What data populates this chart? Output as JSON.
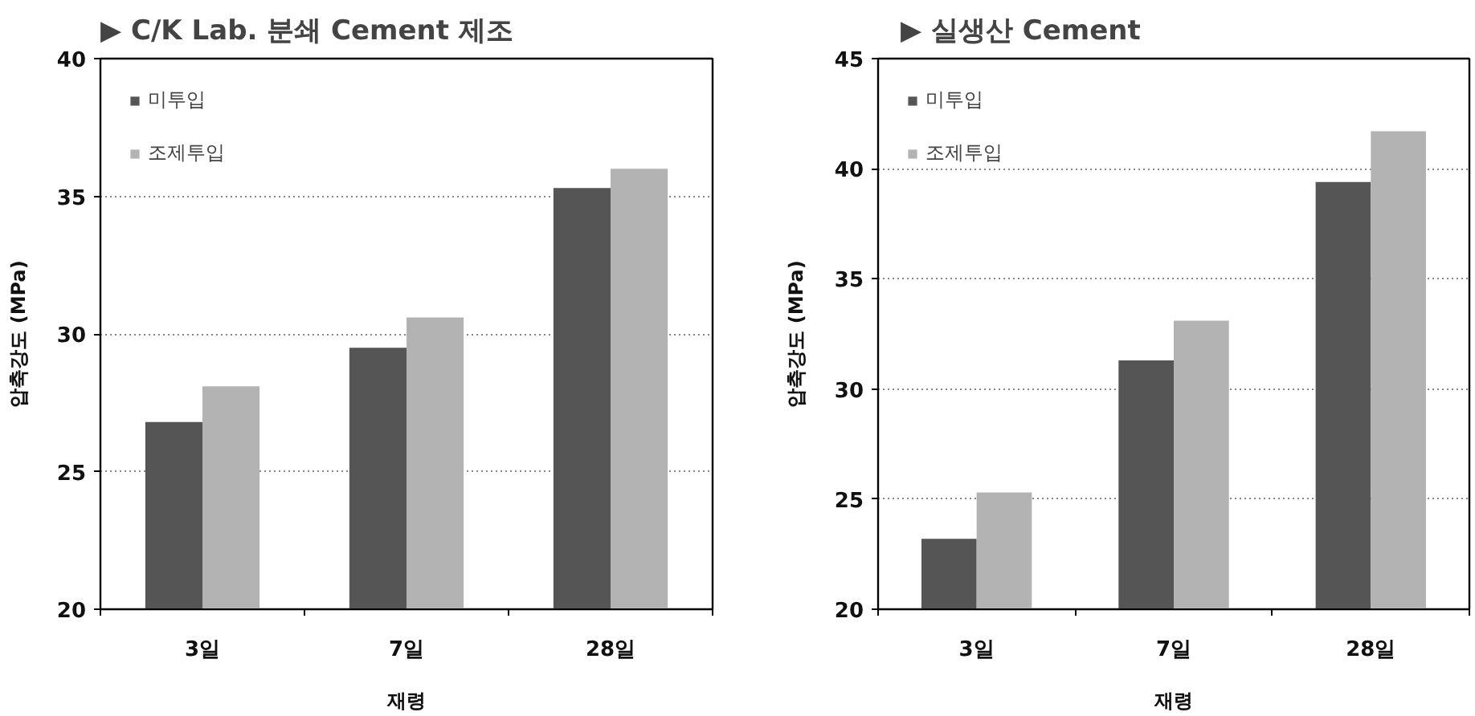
{
  "chart_data": [
    {
      "type": "bar",
      "title": "▶ C/K Lab. 분쇄 Cement 제조",
      "xlabel": "재령",
      "ylabel": "압축강도 (MPa)",
      "categories": [
        "3일",
        "7일",
        "28일"
      ],
      "series": [
        {
          "name": "미투입",
          "color": "#555555",
          "values": [
            26.8,
            29.5,
            35.3
          ]
        },
        {
          "name": "조제투입",
          "color": "#b3b3b3",
          "values": [
            28.1,
            30.6,
            36.0
          ]
        }
      ],
      "ylim": [
        20,
        40
      ],
      "yticks": [
        20,
        25,
        30,
        35,
        40
      ],
      "grid": "y",
      "legend": "top left"
    },
    {
      "type": "bar",
      "title": "▶ 실생산 Cement",
      "xlabel": "재령",
      "ylabel": "압축강도 (MPa)",
      "categories": [
        "3일",
        "7일",
        "28일"
      ],
      "series": [
        {
          "name": "미투입",
          "color": "#555555",
          "values": [
            23.2,
            31.3,
            39.4
          ]
        },
        {
          "name": "조제투입",
          "color": "#b3b3b3",
          "values": [
            25.3,
            33.1,
            41.7
          ]
        }
      ],
      "ylim": [
        20,
        45
      ],
      "yticks": [
        20,
        25,
        30,
        35,
        40,
        45
      ],
      "grid": "y",
      "legend": "top left"
    }
  ]
}
